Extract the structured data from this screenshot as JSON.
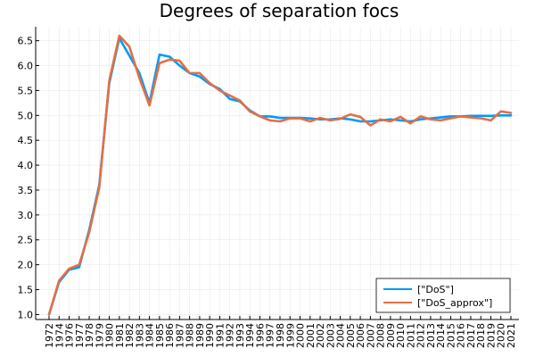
{
  "chart_data": {
    "type": "line",
    "title": "Degrees of separation focs",
    "xlabel": "",
    "ylabel": "",
    "categories": [
      "1972",
      "1974",
      "1976",
      "1977",
      "1978",
      "1979",
      "1980",
      "1981",
      "1982",
      "1983",
      "1984",
      "1985",
      "1986",
      "1987",
      "1988",
      "1989",
      "1990",
      "1991",
      "1992",
      "1993",
      "1994",
      "1996",
      "1997",
      "1998",
      "1999",
      "2000",
      "2001",
      "2002",
      "2003",
      "2004",
      "2005",
      "2006",
      "2007",
      "2008",
      "2009",
      "2010",
      "2011",
      "2012",
      "2013",
      "2014",
      "2015",
      "2016",
      "2017",
      "2018",
      "2019",
      "2020",
      "2021"
    ],
    "ylim": [
      0.9,
      6.78
    ],
    "yticks": [
      "1.0",
      "1.5",
      "2.0",
      "2.5",
      "3.0",
      "3.5",
      "4.0",
      "4.5",
      "5.0",
      "5.5",
      "6.0",
      "6.5"
    ],
    "grid": true,
    "legend_position": "bottom-right",
    "series": [
      {
        "name": "[\"DoS\"]",
        "color": "#009af9",
        "values": [
          1.0,
          1.65,
          1.9,
          1.95,
          2.7,
          3.6,
          5.65,
          6.55,
          6.2,
          5.85,
          5.25,
          6.22,
          6.18,
          6.0,
          5.85,
          5.78,
          5.63,
          5.53,
          5.33,
          5.28,
          5.1,
          4.98,
          4.98,
          4.95,
          4.95,
          4.95,
          4.94,
          4.92,
          4.92,
          4.94,
          4.92,
          4.88,
          4.88,
          4.9,
          4.92,
          4.9,
          4.88,
          4.92,
          4.94,
          4.96,
          4.98,
          4.98,
          4.99,
          4.99,
          4.99,
          5.0,
          5.0
        ]
      },
      {
        "name": "[\"DoS_approx\"]",
        "color": "#e26f46",
        "values": [
          1.0,
          1.68,
          1.92,
          2.0,
          2.65,
          3.55,
          5.7,
          6.6,
          6.38,
          5.75,
          5.2,
          6.05,
          6.12,
          6.1,
          5.85,
          5.85,
          5.65,
          5.5,
          5.4,
          5.3,
          5.08,
          4.98,
          4.9,
          4.88,
          4.94,
          4.94,
          4.88,
          4.95,
          4.9,
          4.93,
          5.02,
          4.97,
          4.8,
          4.92,
          4.88,
          4.97,
          4.84,
          4.98,
          4.92,
          4.9,
          4.94,
          4.98,
          4.96,
          4.94,
          4.9,
          5.08,
          5.05
        ]
      }
    ]
  }
}
